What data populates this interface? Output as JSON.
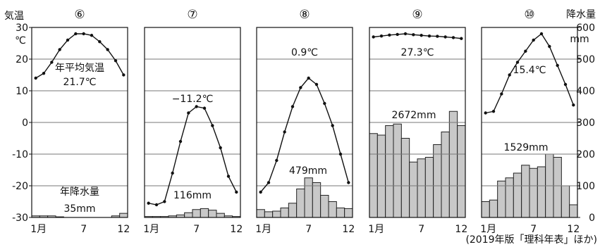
{
  "left_axis": {
    "title": "気温",
    "unit": "℃",
    "ticks": [
      "30",
      "20",
      "10",
      "0",
      "-10",
      "-20",
      "-30"
    ]
  },
  "right_axis": {
    "title": "降水量",
    "unit": "mm",
    "ticks": [
      "600",
      "500",
      "400",
      "300",
      "200",
      "100",
      "0"
    ]
  },
  "month_labels": [
    "1月",
    "7",
    "12"
  ],
  "source": "(2019年版「理科年表」ほか)",
  "colors": {
    "bar_fill": "#c8c8c8",
    "line": "#111111",
    "grid": "#777777"
  },
  "chart_data": [
    {
      "type": "bar+line",
      "panel": "⑥",
      "annotations": [
        "年平均気温",
        "21.7℃",
        "年降水量",
        "35mm"
      ],
      "temperature": [
        14,
        15.5,
        19,
        23,
        26,
        28,
        28,
        27.5,
        25.5,
        23,
        19.5,
        15
      ],
      "precipitation": [
        5,
        5,
        5,
        2,
        0,
        0,
        0,
        0,
        0,
        0,
        5,
        13
      ],
      "xlabel": "",
      "ylabel_left": "気温 ℃",
      "ylabel_right": "降水量 mm",
      "ylim_left": [
        -30,
        30
      ],
      "ylim_right": [
        0,
        600
      ]
    },
    {
      "type": "bar+line",
      "panel": "⑦",
      "annotations": [
        "−11.2℃",
        "116mm"
      ],
      "temperature": [
        -25.5,
        -26,
        -25,
        -16,
        -6,
        3,
        5,
        4.5,
        -1,
        -8,
        -17,
        -22
      ],
      "precipitation": [
        3,
        3,
        3,
        5,
        8,
        15,
        25,
        28,
        23,
        13,
        5,
        3
      ],
      "ylim_left": [
        -30,
        30
      ],
      "ylim_right": [
        0,
        600
      ]
    },
    {
      "type": "bar+line",
      "panel": "⑧",
      "annotations": [
        "0.9℃",
        "479mm"
      ],
      "temperature": [
        -22,
        -19,
        -12,
        -3,
        5,
        11,
        14,
        12,
        6,
        -1,
        -10,
        -19
      ],
      "precipitation": [
        25,
        18,
        20,
        30,
        45,
        90,
        125,
        110,
        70,
        50,
        30,
        28
      ],
      "ylim_left": [
        -30,
        30
      ],
      "ylim_right": [
        0,
        600
      ]
    },
    {
      "type": "bar+line",
      "panel": "⑨",
      "annotations": [
        "27.3℃",
        "2672mm"
      ],
      "temperature": [
        27,
        27.3,
        27.6,
        27.8,
        28,
        27.7,
        27.5,
        27.3,
        27.2,
        27,
        26.8,
        26.5
      ],
      "precipitation": [
        265,
        260,
        290,
        295,
        250,
        175,
        185,
        190,
        230,
        270,
        335,
        290
      ],
      "ylim_left": [
        -30,
        30
      ],
      "ylim_right": [
        0,
        600
      ]
    },
    {
      "type": "bar+line",
      "panel": "⑩",
      "annotations": [
        "15.4℃",
        "1529mm"
      ],
      "temperature": [
        3,
        3.5,
        9,
        15,
        19,
        22.5,
        26,
        28,
        24,
        18,
        12,
        5.5
      ],
      "precipitation": [
        50,
        55,
        115,
        125,
        140,
        165,
        155,
        160,
        200,
        190,
        100,
        40
      ],
      "ylim_left": [
        -30,
        30
      ],
      "ylim_right": [
        0,
        600
      ]
    }
  ]
}
